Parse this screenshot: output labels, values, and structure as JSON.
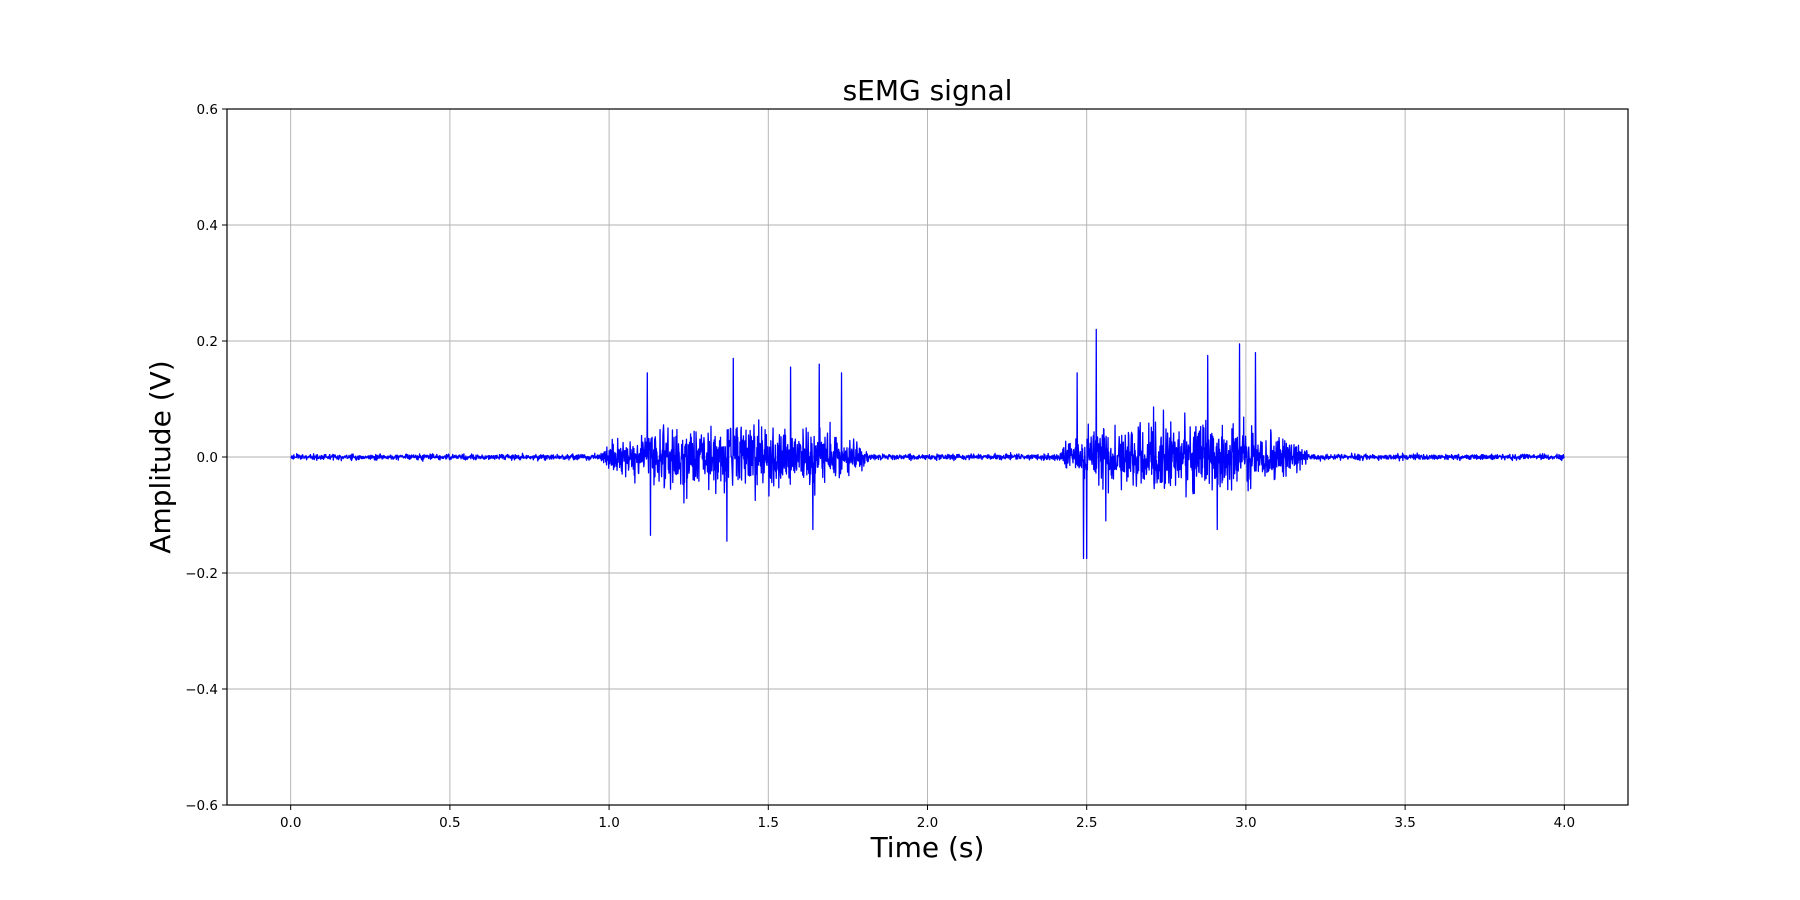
{
  "chart_data": {
    "type": "line",
    "title": "sEMG signal",
    "xlabel": "Time (s)",
    "ylabel": "Amplitude (V)",
    "xlim": [
      -0.2,
      4.2
    ],
    "ylim": [
      -0.6,
      0.6
    ],
    "x_ticks": [
      0.0,
      0.5,
      1.0,
      1.5,
      2.0,
      2.5,
      3.0,
      3.5,
      4.0
    ],
    "x_tick_labels": [
      "0.0",
      "0.5",
      "1.0",
      "1.5",
      "2.0",
      "2.5",
      "3.0",
      "3.5",
      "4.0"
    ],
    "y_ticks": [
      -0.6,
      -0.4,
      -0.2,
      0.0,
      0.2,
      0.4,
      0.6
    ],
    "y_tick_labels": [
      "−0.6",
      "−0.4",
      "−0.2",
      "0.0",
      "0.2",
      "0.4",
      "0.6"
    ],
    "grid": true,
    "legend": "none",
    "series": [
      {
        "color": "#0000ff",
        "x_start": 0.0,
        "x_end": 4.0,
        "baseline_noise_amplitude": 0.004,
        "bursts": [
          {
            "start": 0.97,
            "end": 1.82,
            "envelope_peak": 0.085
          },
          {
            "start": 2.41,
            "end": 3.2,
            "envelope_peak": 0.09
          }
        ],
        "peaks": [
          {
            "x": 1.12,
            "y": 0.145
          },
          {
            "x": 1.13,
            "y": -0.135
          },
          {
            "x": 1.39,
            "y": 0.17
          },
          {
            "x": 1.37,
            "y": -0.145
          },
          {
            "x": 1.57,
            "y": 0.155
          },
          {
            "x": 1.64,
            "y": -0.125
          },
          {
            "x": 1.66,
            "y": 0.16
          },
          {
            "x": 1.73,
            "y": 0.145
          },
          {
            "x": 2.53,
            "y": 0.22
          },
          {
            "x": 2.49,
            "y": -0.175
          },
          {
            "x": 2.5,
            "y": -0.175
          },
          {
            "x": 2.47,
            "y": 0.145
          },
          {
            "x": 2.88,
            "y": 0.175
          },
          {
            "x": 2.98,
            "y": 0.195
          },
          {
            "x": 3.03,
            "y": 0.18
          },
          {
            "x": 2.91,
            "y": -0.125
          },
          {
            "x": 2.56,
            "y": -0.11
          }
        ]
      }
    ]
  }
}
